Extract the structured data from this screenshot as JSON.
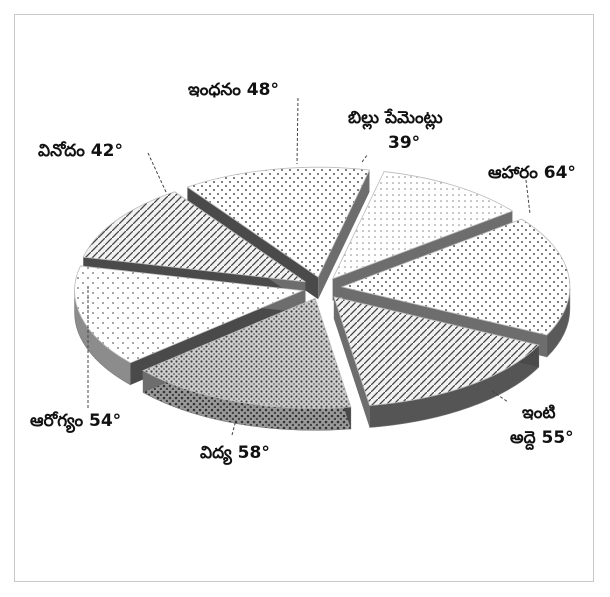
{
  "chart_data": {
    "type": "pie",
    "title": "",
    "unit": "°",
    "slices": [
      {
        "label": "బిల్లు పేమెంట్లు",
        "value": 39,
        "display": "39°",
        "line1": "బిల్లు పేమెంట్లు",
        "line2": "39°"
      },
      {
        "label": "ఆహారం",
        "value": 64,
        "display": "ఆహారం 64°",
        "line1": "ఆహారం 64°",
        "line2": ""
      },
      {
        "label": "ఇంటి అద్దె",
        "value": 55,
        "display": "55°",
        "line1": "ఇంటి",
        "line2": "అద్దె 55°"
      },
      {
        "label": "విద్య",
        "value": 58,
        "display": "విద్య 58°",
        "line1": "విద్య 58°",
        "line2": ""
      },
      {
        "label": "ఆరోగ్యం",
        "value": 54,
        "display": "ఆరోగ్యం 54°",
        "line1": "ఆరోగ్యం 54°",
        "line2": ""
      },
      {
        "label": "వినోదం",
        "value": 42,
        "display": "వినోదం 42°",
        "line1": "వినోదం 42°",
        "line2": ""
      },
      {
        "label": "ఇంధనం",
        "value": 48,
        "display": "ఇంధనం 48°",
        "line1": "ఇంధనం 48°",
        "line2": ""
      }
    ]
  }
}
